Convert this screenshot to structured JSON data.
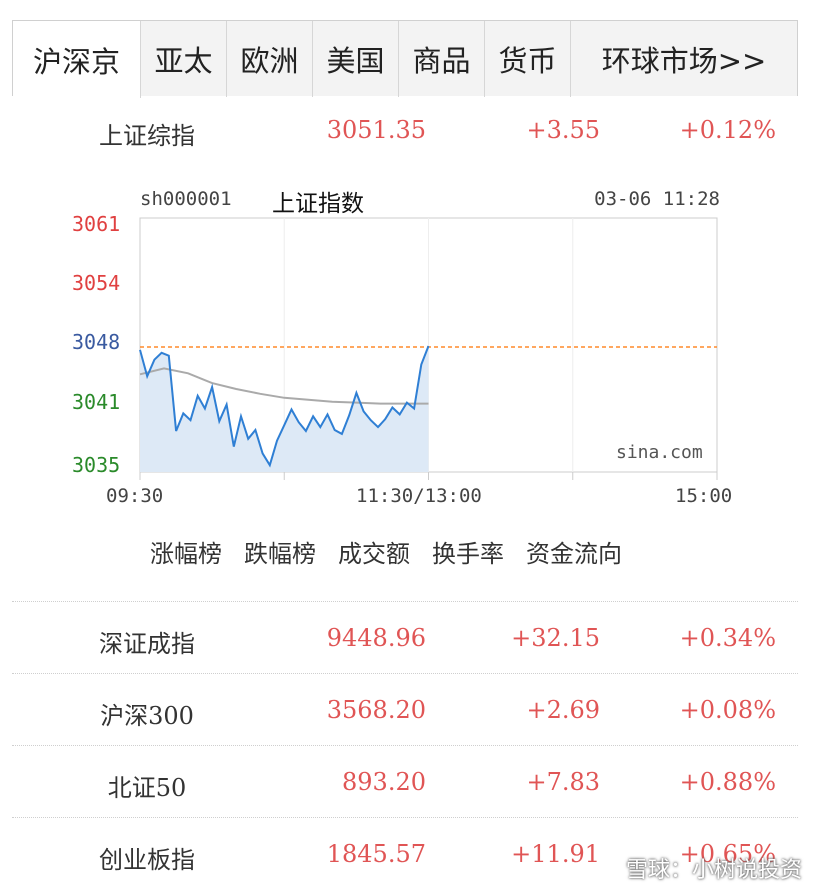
{
  "tabs": [
    "沪深京",
    "亚太",
    "欧洲",
    "美国",
    "商品",
    "货币",
    "环球市场>>"
  ],
  "indices": [
    {
      "name": "上证综指",
      "price": "3051.35",
      "change": "+3.55",
      "pct": "+0.12%"
    },
    {
      "name": "深证成指",
      "price": "9448.96",
      "change": "+32.15",
      "pct": "+0.34%"
    },
    {
      "name": "沪深300",
      "price": "3568.20",
      "change": "+2.69",
      "pct": "+0.08%"
    },
    {
      "name": "北证50",
      "price": "893.20",
      "change": "+7.83",
      "pct": "+0.88%"
    },
    {
      "name": "创业板指",
      "price": "1845.57",
      "change": "+11.91",
      "pct": "+0.65%"
    }
  ],
  "chart": {
    "code": "sh000001",
    "name": "上证指数",
    "datetime": "03-06 11:28",
    "y_ticks": [
      "3061",
      "3054",
      "3048",
      "3041",
      "3035"
    ],
    "y_tick_colors": [
      "#e04040",
      "#e04040",
      "#3a5aa0",
      "#2a8a2a",
      "#2a8a2a"
    ],
    "x_ticks": [
      "09:30",
      "11:30/13:00",
      "15:00"
    ],
    "brand": "sina.com",
    "colors": {
      "price_line": "#2f7fd4",
      "avg_line": "#aaaaaa",
      "ref_line": "#ff8a2a",
      "fill": "#dde9f6"
    }
  },
  "chart_data": {
    "type": "line",
    "title": "上证指数",
    "ylim": [
      3035,
      3061
    ],
    "reference_value": 3047.8,
    "x_range_minutes": [
      0,
      240
    ],
    "series": [
      {
        "values_x_minutes": [
          0,
          3,
          6,
          9,
          12,
          15,
          18,
          21,
          24,
          27,
          30,
          33,
          36,
          39,
          42,
          45,
          48,
          51,
          54,
          57,
          60,
          63,
          66,
          69,
          72,
          75,
          78,
          81,
          84,
          87,
          90,
          93,
          96,
          99,
          102,
          105,
          108,
          111,
          114,
          117,
          120
        ],
        "values": [
          3047.5,
          3044.8,
          3046.5,
          3047.2,
          3046.9,
          3039.2,
          3041.0,
          3040.3,
          3042.8,
          3041.5,
          3043.7,
          3040.2,
          3041.9,
          3037.6,
          3040.7,
          3038.4,
          3039.3,
          3036.9,
          3035.7,
          3038.2,
          3039.8,
          3041.4,
          3040.1,
          3039.2,
          3040.7,
          3039.6,
          3040.9,
          3039.3,
          3038.9,
          3040.8,
          3043.1,
          3041.2,
          3040.3,
          3039.6,
          3040.4,
          3041.6,
          3040.9,
          3042.1,
          3041.5,
          3046.0,
          3047.9
        ]
      },
      {
        "values_x_minutes": [
          0,
          10,
          20,
          30,
          40,
          50,
          60,
          70,
          80,
          90,
          100,
          110,
          120
        ],
        "values": [
          3045.0,
          3045.6,
          3045.1,
          3044.1,
          3043.5,
          3043.0,
          3042.6,
          3042.4,
          3042.2,
          3042.1,
          3042.0,
          3042.0,
          3042.0
        ]
      }
    ]
  },
  "links": [
    "涨幅榜",
    "跌幅榜",
    "成交额",
    "换手率",
    "资金流向"
  ],
  "watermark": "雪球：小树说投资"
}
